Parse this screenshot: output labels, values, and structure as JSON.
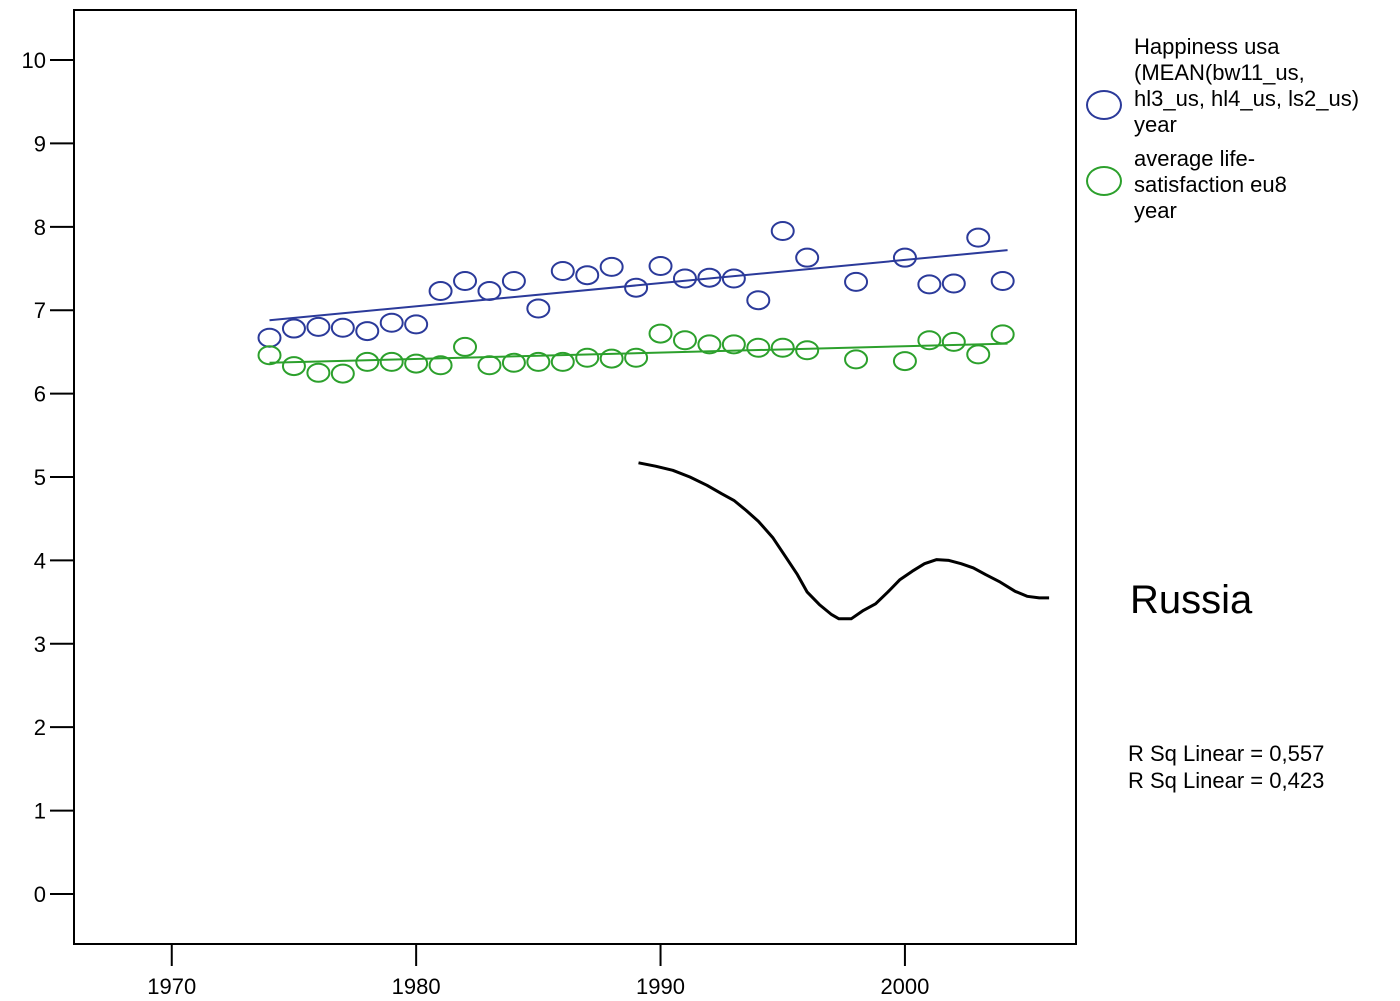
{
  "chart_data": {
    "type": "scatter",
    "title": "",
    "xlabel": "",
    "ylabel": "",
    "xlim": [
      1966,
      2007
    ],
    "ylim": [
      -0.6,
      10.6
    ],
    "x_ticks": [
      1970,
      1980,
      1990,
      2000
    ],
    "y_ticks": [
      0,
      1,
      2,
      3,
      4,
      5,
      6,
      7,
      8,
      9,
      10
    ],
    "grid": false,
    "legend_placement": "top-right outside",
    "series": [
      {
        "name": "Happiness usa (MEAN(bw11_us, hl3_us, hl4_us, ls2_us)",
        "legend_sub": "year",
        "type": "scatter",
        "color": "#2b3a9a",
        "points": [
          [
            1974,
            6.67
          ],
          [
            1975,
            6.78
          ],
          [
            1976,
            6.8
          ],
          [
            1977,
            6.79
          ],
          [
            1978,
            6.75
          ],
          [
            1979,
            6.85
          ],
          [
            1980,
            6.83
          ],
          [
            1981,
            7.23
          ],
          [
            1982,
            7.35
          ],
          [
            1983,
            7.23
          ],
          [
            1984,
            7.35
          ],
          [
            1985,
            7.02
          ],
          [
            1986,
            7.47
          ],
          [
            1987,
            7.42
          ],
          [
            1988,
            7.52
          ],
          [
            1989,
            7.27
          ],
          [
            1990,
            7.53
          ],
          [
            1991,
            7.38
          ],
          [
            1992,
            7.39
          ],
          [
            1993,
            7.38
          ],
          [
            1994,
            7.12
          ],
          [
            1995,
            7.95
          ],
          [
            1996,
            7.63
          ],
          [
            1998,
            7.34
          ],
          [
            2000,
            7.63
          ],
          [
            2001,
            7.31
          ],
          [
            2002,
            7.32
          ],
          [
            2003,
            7.87
          ],
          [
            2004,
            7.35
          ]
        ],
        "fit": [
          [
            1974,
            6.88
          ],
          [
            2004.2,
            7.72
          ]
        ]
      },
      {
        "name": "average life-satisfaction eu8",
        "legend_sub": "year",
        "type": "scatter",
        "color": "#2ca02c",
        "points": [
          [
            1974,
            6.46
          ],
          [
            1975,
            6.33
          ],
          [
            1976,
            6.25
          ],
          [
            1977,
            6.24
          ],
          [
            1978,
            6.38
          ],
          [
            1979,
            6.38
          ],
          [
            1980,
            6.36
          ],
          [
            1981,
            6.34
          ],
          [
            1982,
            6.56
          ],
          [
            1983,
            6.34
          ],
          [
            1984,
            6.37
          ],
          [
            1985,
            6.38
          ],
          [
            1986,
            6.38
          ],
          [
            1987,
            6.43
          ],
          [
            1988,
            6.42
          ],
          [
            1989,
            6.43
          ],
          [
            1990,
            6.72
          ],
          [
            1991,
            6.64
          ],
          [
            1992,
            6.59
          ],
          [
            1993,
            6.59
          ],
          [
            1994,
            6.55
          ],
          [
            1995,
            6.55
          ],
          [
            1996,
            6.52
          ],
          [
            1998,
            6.41
          ],
          [
            2000,
            6.39
          ],
          [
            2001,
            6.64
          ],
          [
            2002,
            6.62
          ],
          [
            2003,
            6.47
          ],
          [
            2004,
            6.71
          ]
        ],
        "fit": [
          [
            1974,
            6.37
          ],
          [
            2004.2,
            6.6
          ]
        ]
      },
      {
        "name": "Russia",
        "type": "line",
        "color": "#000000",
        "points": [
          [
            1989.1,
            5.17
          ],
          [
            1989.8,
            5.13
          ],
          [
            1990.5,
            5.08
          ],
          [
            1991.2,
            5.0
          ],
          [
            1991.9,
            4.9
          ],
          [
            1992.5,
            4.8
          ],
          [
            1993.0,
            4.72
          ],
          [
            1993.5,
            4.6
          ],
          [
            1994.0,
            4.47
          ],
          [
            1994.6,
            4.27
          ],
          [
            1995.1,
            4.05
          ],
          [
            1995.6,
            3.83
          ],
          [
            1996.0,
            3.62
          ],
          [
            1996.5,
            3.47
          ],
          [
            1997.0,
            3.35
          ],
          [
            1997.3,
            3.3
          ],
          [
            1997.8,
            3.3
          ],
          [
            1998.3,
            3.4
          ],
          [
            1998.8,
            3.48
          ],
          [
            1999.3,
            3.62
          ],
          [
            1999.8,
            3.77
          ],
          [
            2000.3,
            3.87
          ],
          [
            2000.8,
            3.96
          ],
          [
            2001.3,
            4.01
          ],
          [
            2001.8,
            4.0
          ],
          [
            2002.3,
            3.96
          ],
          [
            2002.8,
            3.91
          ],
          [
            2003.3,
            3.83
          ],
          [
            2003.9,
            3.74
          ],
          [
            2004.5,
            3.63
          ],
          [
            2005.0,
            3.57
          ],
          [
            2005.5,
            3.55
          ],
          [
            2005.9,
            3.55
          ]
        ]
      }
    ],
    "annotation": "Russia",
    "r_squared": [
      "R Sq Linear = 0,557",
      "R Sq Linear = 0,423"
    ]
  }
}
